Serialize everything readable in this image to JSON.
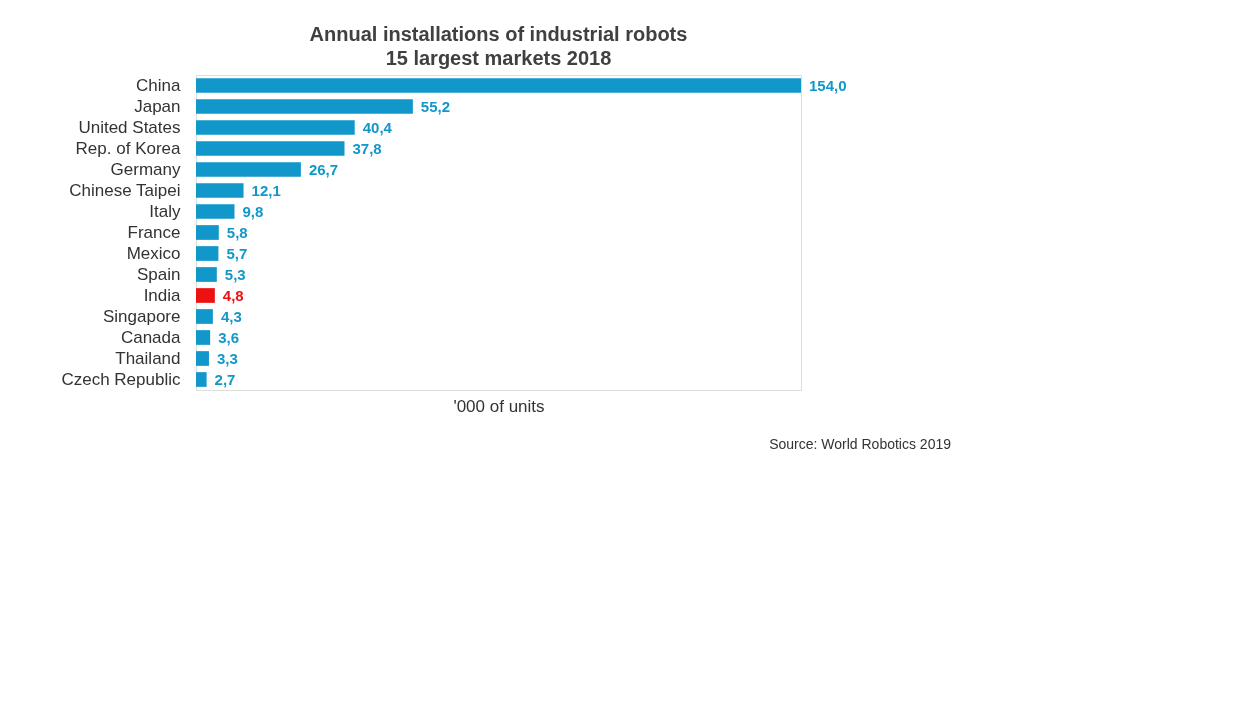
{
  "chart_data": {
    "type": "bar",
    "orientation": "horizontal",
    "title": "Annual installations  of industrial robots",
    "subtitle": "15 largest markets 2018",
    "xlabel": "'000 of units",
    "annotations": [
      "Source: World Robotics 2019"
    ],
    "categories": [
      "China",
      "Japan",
      "United States",
      "Rep. of Korea",
      "Germany",
      "Chinese Taipei",
      "Italy",
      "France",
      "Mexico",
      "Spain",
      "India",
      "Singapore",
      "Canada",
      "Thailand",
      "Czech Republic"
    ],
    "values": [
      154.0,
      55.2,
      40.4,
      37.8,
      26.7,
      12.1,
      9.8,
      5.8,
      5.7,
      5.3,
      4.8,
      4.3,
      3.6,
      3.3,
      2.7
    ],
    "value_labels": [
      "154,0",
      "55,2",
      "40,4",
      "37,8",
      "26,7",
      "12,1",
      "9,8",
      "5,8",
      "5,7",
      "5,3",
      "4,8",
      "4,3",
      "3,6",
      "3,3",
      "2,7"
    ],
    "colors": [
      "#1197c9",
      "#1197c9",
      "#1197c9",
      "#1197c9",
      "#1197c9",
      "#1197c9",
      "#1197c9",
      "#1197c9",
      "#1197c9",
      "#1197c9",
      "#ee1111",
      "#1197c9",
      "#1197c9",
      "#1197c9",
      "#1197c9"
    ],
    "grid": false
  }
}
